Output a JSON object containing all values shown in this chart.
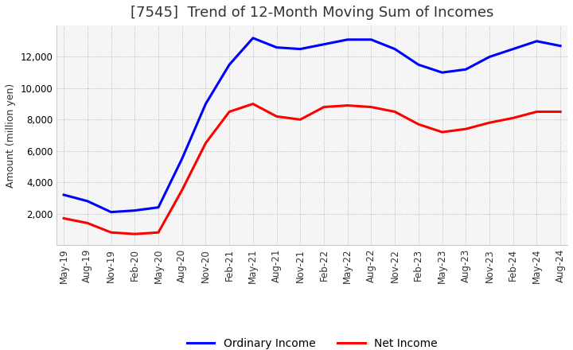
{
  "title": "[7545]  Trend of 12-Month Moving Sum of Incomes",
  "ylabel": "Amount (million yen)",
  "background_color": "#ffffff",
  "plot_background_color": "#f5f5f5",
  "grid_color": "#aaaaaa",
  "ordinary_income_color": "#0000ff",
  "net_income_color": "#ff0000",
  "ordinary_income_label": "Ordinary Income",
  "net_income_label": "Net Income",
  "x_labels": [
    "May-19",
    "Aug-19",
    "Nov-19",
    "Feb-20",
    "May-20",
    "Aug-20",
    "Nov-20",
    "Feb-21",
    "May-21",
    "Aug-21",
    "Nov-21",
    "Feb-22",
    "May-22",
    "Aug-22",
    "Nov-22",
    "Feb-23",
    "May-23",
    "Aug-23",
    "Nov-23",
    "Feb-24",
    "May-24",
    "Aug-24"
  ],
  "ordinary_income": [
    3200,
    2800,
    2100,
    2200,
    2400,
    5500,
    9000,
    11500,
    13200,
    12600,
    12500,
    12800,
    13100,
    13100,
    12500,
    11500,
    11000,
    11200,
    12000,
    12500,
    13000,
    12700
  ],
  "net_income": [
    1700,
    1400,
    800,
    700,
    800,
    3500,
    6500,
    8500,
    9000,
    8200,
    8000,
    8800,
    8900,
    8800,
    8500,
    7700,
    7200,
    7400,
    7800,
    8100,
    8500,
    8500
  ],
  "ylim": [
    0,
    14000
  ],
  "yticks": [
    2000,
    4000,
    6000,
    8000,
    10000,
    12000
  ],
  "title_fontsize": 13,
  "axis_fontsize": 9,
  "tick_fontsize": 8.5,
  "line_width": 2.2,
  "legend_fontsize": 10
}
